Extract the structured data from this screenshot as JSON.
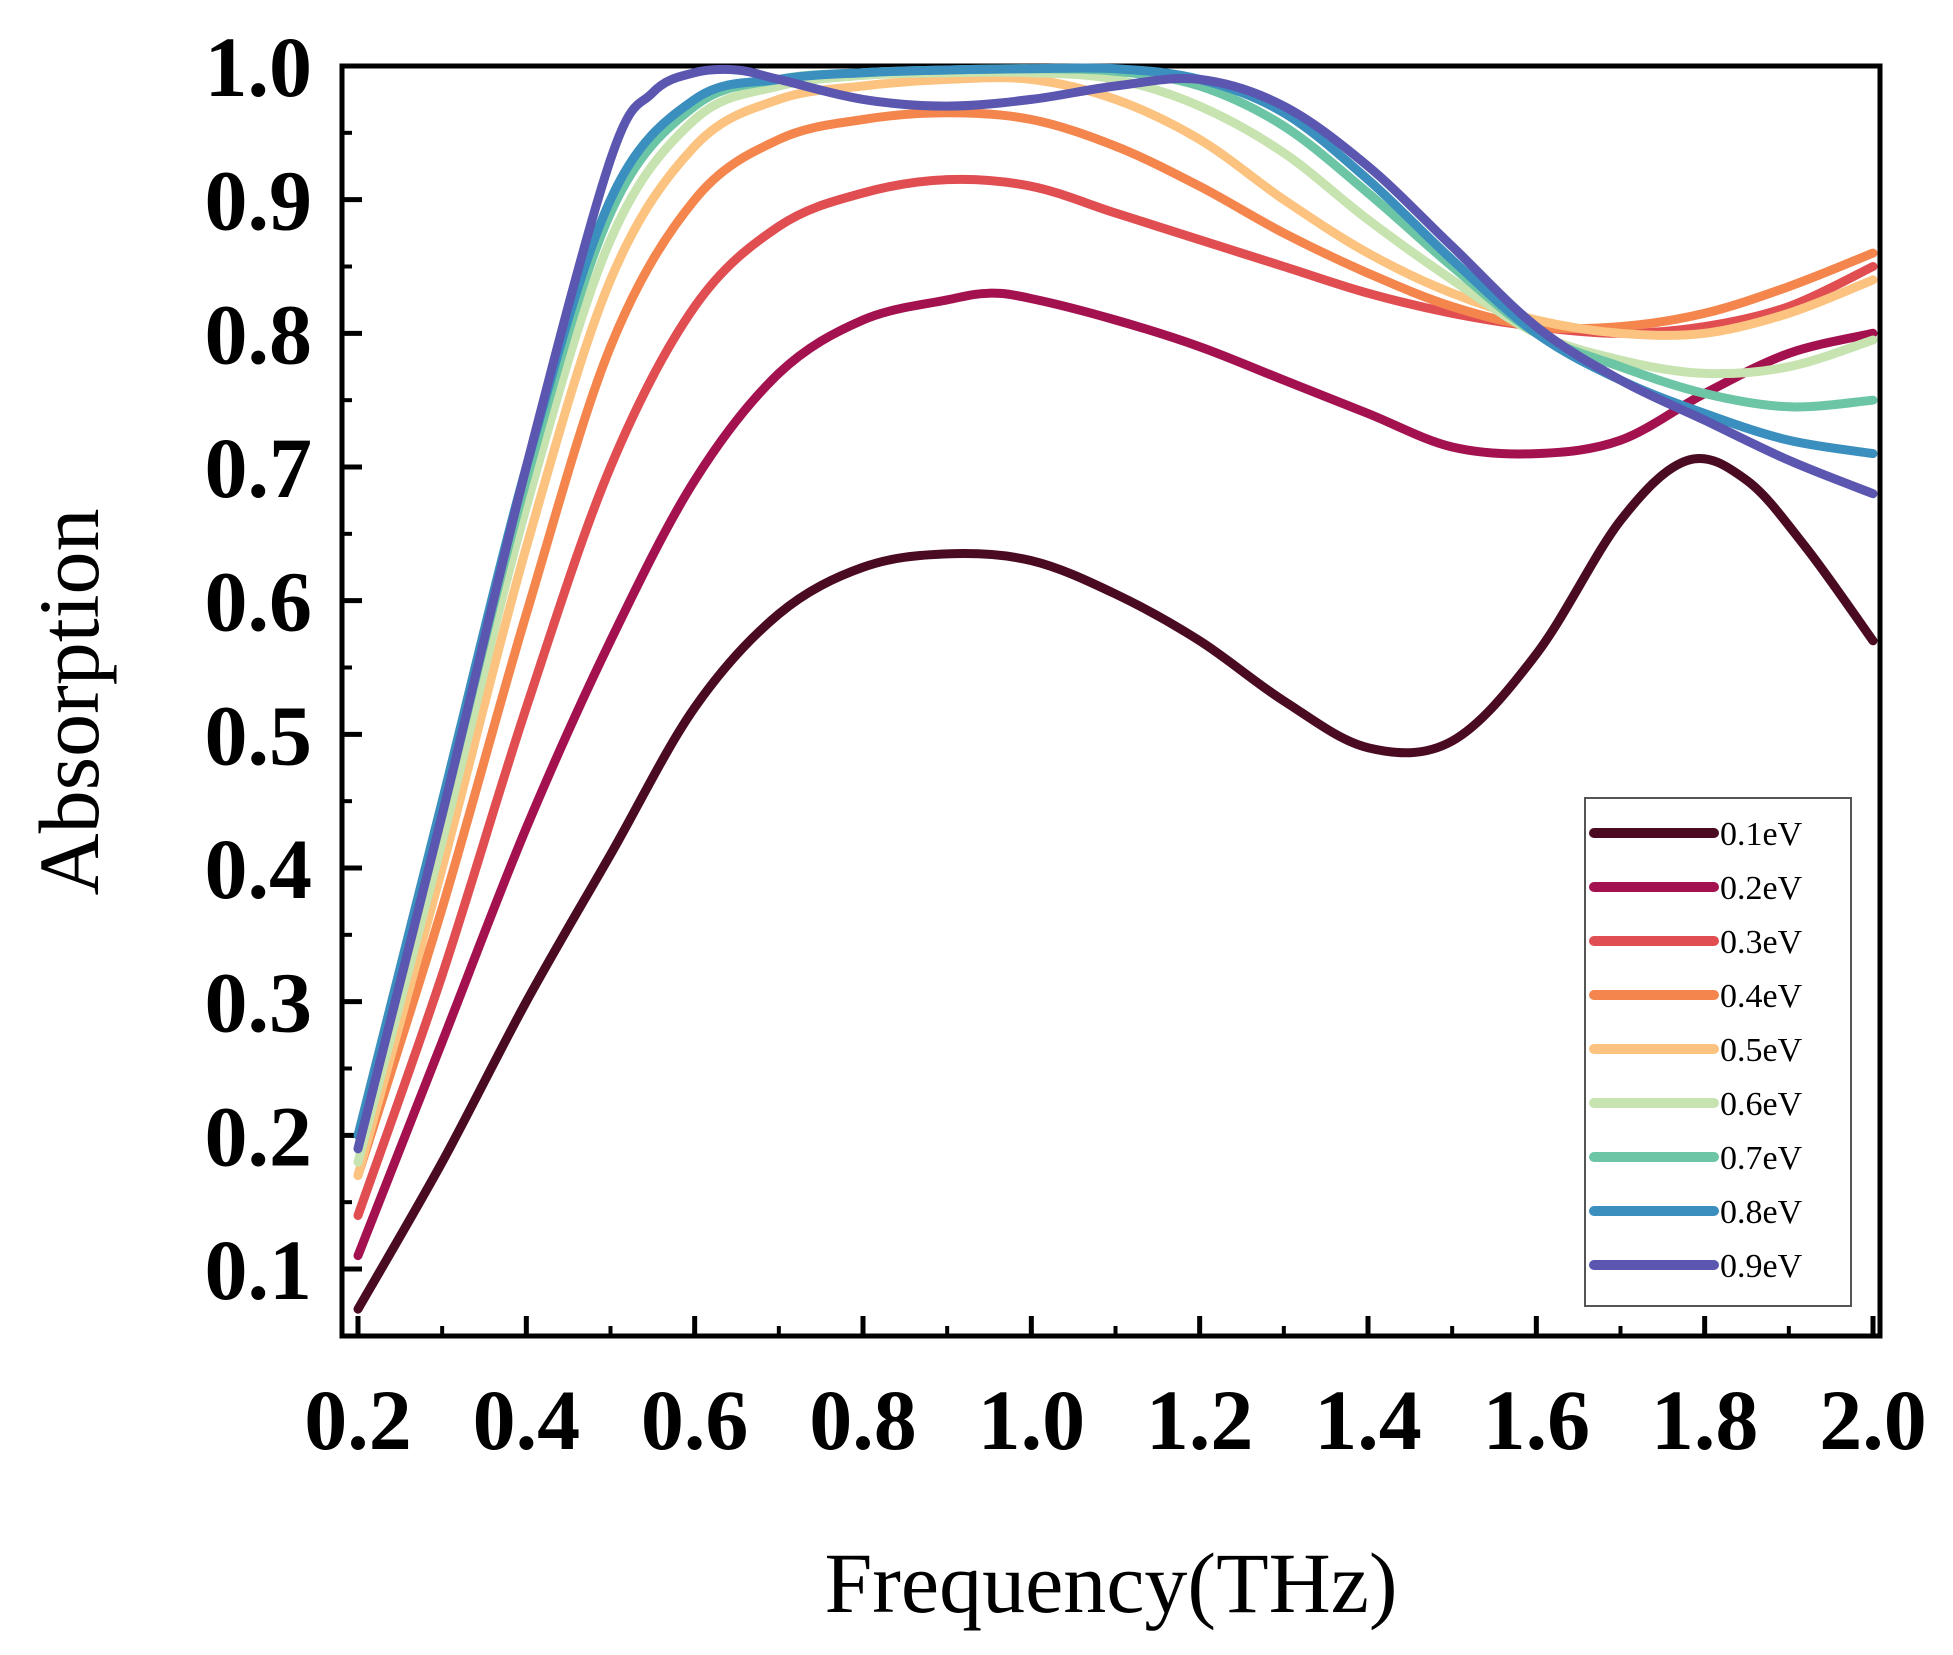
{
  "chart_data": {
    "type": "line",
    "title": "",
    "xlabel": "Frequency(THz)",
    "ylabel": "Absorption",
    "xlim": [
      0.2,
      2.0
    ],
    "ylim": [
      0.05,
      1.0
    ],
    "grid": false,
    "legend_position": "bottom-right",
    "x_ticks": [
      0.2,
      0.4,
      0.6,
      0.8,
      1.0,
      1.2,
      1.4,
      1.6,
      1.8,
      2.0
    ],
    "x_tick_labels": [
      "0.2",
      "0.4",
      "0.6",
      "0.8",
      "1.0",
      "1.2",
      "1.4",
      "1.6",
      "1.8",
      "2.0"
    ],
    "y_ticks": [
      0.1,
      0.2,
      0.3,
      0.4,
      0.5,
      0.6,
      0.7,
      0.8,
      0.9,
      1.0
    ],
    "y_tick_labels": [
      "0.1",
      "0.2",
      "0.3",
      "0.4",
      "0.5",
      "0.6",
      "0.7",
      "0.8",
      "0.9",
      "1.0"
    ],
    "series": [
      {
        "name": "0.1eV",
        "color": "#4a0b22",
        "points": [
          [
            0.2,
            0.07
          ],
          [
            0.3,
            0.18
          ],
          [
            0.4,
            0.3
          ],
          [
            0.5,
            0.41
          ],
          [
            0.6,
            0.52
          ],
          [
            0.7,
            0.59
          ],
          [
            0.8,
            0.625
          ],
          [
            0.9,
            0.635
          ],
          [
            1.0,
            0.63
          ],
          [
            1.1,
            0.605
          ],
          [
            1.2,
            0.57
          ],
          [
            1.3,
            0.525
          ],
          [
            1.4,
            0.49
          ],
          [
            1.5,
            0.495
          ],
          [
            1.6,
            0.56
          ],
          [
            1.7,
            0.66
          ],
          [
            1.78,
            0.705
          ],
          [
            1.85,
            0.69
          ],
          [
            1.92,
            0.64
          ],
          [
            2.0,
            0.57
          ]
        ]
      },
      {
        "name": "0.2eV",
        "color": "#a3124f",
        "points": [
          [
            0.2,
            0.11
          ],
          [
            0.3,
            0.27
          ],
          [
            0.4,
            0.43
          ],
          [
            0.5,
            0.57
          ],
          [
            0.6,
            0.69
          ],
          [
            0.7,
            0.77
          ],
          [
            0.8,
            0.81
          ],
          [
            0.9,
            0.825
          ],
          [
            0.95,
            0.83
          ],
          [
            1.0,
            0.826
          ],
          [
            1.1,
            0.81
          ],
          [
            1.2,
            0.79
          ],
          [
            1.3,
            0.765
          ],
          [
            1.4,
            0.74
          ],
          [
            1.5,
            0.715
          ],
          [
            1.6,
            0.71
          ],
          [
            1.7,
            0.72
          ],
          [
            1.8,
            0.755
          ],
          [
            1.9,
            0.785
          ],
          [
            2.0,
            0.8
          ]
        ]
      },
      {
        "name": "0.3eV",
        "color": "#e04e52",
        "points": [
          [
            0.2,
            0.14
          ],
          [
            0.3,
            0.32
          ],
          [
            0.4,
            0.52
          ],
          [
            0.5,
            0.7
          ],
          [
            0.6,
            0.82
          ],
          [
            0.7,
            0.88
          ],
          [
            0.8,
            0.905
          ],
          [
            0.9,
            0.915
          ],
          [
            1.0,
            0.91
          ],
          [
            1.1,
            0.89
          ],
          [
            1.2,
            0.87
          ],
          [
            1.3,
            0.85
          ],
          [
            1.4,
            0.83
          ],
          [
            1.5,
            0.815
          ],
          [
            1.6,
            0.805
          ],
          [
            1.7,
            0.8
          ],
          [
            1.8,
            0.805
          ],
          [
            1.9,
            0.82
          ],
          [
            2.0,
            0.85
          ]
        ]
      },
      {
        "name": "0.4eV",
        "color": "#f4854d",
        "points": [
          [
            0.2,
            0.17
          ],
          [
            0.3,
            0.37
          ],
          [
            0.4,
            0.59
          ],
          [
            0.5,
            0.79
          ],
          [
            0.6,
            0.9
          ],
          [
            0.7,
            0.945
          ],
          [
            0.8,
            0.96
          ],
          [
            0.9,
            0.965
          ],
          [
            1.0,
            0.96
          ],
          [
            1.1,
            0.94
          ],
          [
            1.2,
            0.91
          ],
          [
            1.3,
            0.875
          ],
          [
            1.4,
            0.845
          ],
          [
            1.5,
            0.82
          ],
          [
            1.6,
            0.805
          ],
          [
            1.7,
            0.805
          ],
          [
            1.8,
            0.815
          ],
          [
            1.9,
            0.835
          ],
          [
            2.0,
            0.86
          ]
        ]
      },
      {
        "name": "0.5eV",
        "color": "#fbc37f",
        "points": [
          [
            0.2,
            0.17
          ],
          [
            0.3,
            0.4
          ],
          [
            0.4,
            0.64
          ],
          [
            0.5,
            0.84
          ],
          [
            0.6,
            0.94
          ],
          [
            0.7,
            0.975
          ],
          [
            0.8,
            0.985
          ],
          [
            0.9,
            0.99
          ],
          [
            1.0,
            0.99
          ],
          [
            1.1,
            0.975
          ],
          [
            1.2,
            0.945
          ],
          [
            1.3,
            0.9
          ],
          [
            1.4,
            0.86
          ],
          [
            1.5,
            0.83
          ],
          [
            1.6,
            0.81
          ],
          [
            1.7,
            0.8
          ],
          [
            1.8,
            0.8
          ],
          [
            1.9,
            0.815
          ],
          [
            2.0,
            0.84
          ]
        ]
      },
      {
        "name": "0.6eV",
        "color": "#c7e3b0",
        "points": [
          [
            0.2,
            0.18
          ],
          [
            0.3,
            0.42
          ],
          [
            0.4,
            0.67
          ],
          [
            0.5,
            0.87
          ],
          [
            0.6,
            0.96
          ],
          [
            0.7,
            0.985
          ],
          [
            0.8,
            0.993
          ],
          [
            0.9,
            0.995
          ],
          [
            1.0,
            0.995
          ],
          [
            1.1,
            0.99
          ],
          [
            1.2,
            0.97
          ],
          [
            1.3,
            0.935
          ],
          [
            1.4,
            0.885
          ],
          [
            1.5,
            0.84
          ],
          [
            1.6,
            0.8
          ],
          [
            1.7,
            0.78
          ],
          [
            1.8,
            0.77
          ],
          [
            1.9,
            0.775
          ],
          [
            2.0,
            0.795
          ]
        ]
      },
      {
        "name": "0.7eV",
        "color": "#6cc5a5",
        "points": [
          [
            0.2,
            0.19
          ],
          [
            0.3,
            0.44
          ],
          [
            0.4,
            0.69
          ],
          [
            0.5,
            0.89
          ],
          [
            0.6,
            0.97
          ],
          [
            0.7,
            0.99
          ],
          [
            0.8,
            0.995
          ],
          [
            0.9,
            0.997
          ],
          [
            1.0,
            0.998
          ],
          [
            1.1,
            0.996
          ],
          [
            1.2,
            0.985
          ],
          [
            1.3,
            0.955
          ],
          [
            1.4,
            0.905
          ],
          [
            1.5,
            0.85
          ],
          [
            1.6,
            0.8
          ],
          [
            1.7,
            0.775
          ],
          [
            1.8,
            0.755
          ],
          [
            1.9,
            0.745
          ],
          [
            2.0,
            0.75
          ]
        ]
      },
      {
        "name": "0.8eV",
        "color": "#3a8fbf",
        "points": [
          [
            0.2,
            0.2
          ],
          [
            0.3,
            0.45
          ],
          [
            0.4,
            0.7
          ],
          [
            0.5,
            0.9
          ],
          [
            0.6,
            0.975
          ],
          [
            0.7,
            0.99
          ],
          [
            0.8,
            0.995
          ],
          [
            0.9,
            0.997
          ],
          [
            1.0,
            0.998
          ],
          [
            1.1,
            0.998
          ],
          [
            1.2,
            0.99
          ],
          [
            1.3,
            0.965
          ],
          [
            1.4,
            0.915
          ],
          [
            1.5,
            0.855
          ],
          [
            1.6,
            0.8
          ],
          [
            1.7,
            0.765
          ],
          [
            1.8,
            0.74
          ],
          [
            1.9,
            0.72
          ],
          [
            2.0,
            0.71
          ]
        ]
      },
      {
        "name": "0.9eV",
        "color": "#5b56b0",
        "points": [
          [
            0.2,
            0.19
          ],
          [
            0.3,
            0.44
          ],
          [
            0.4,
            0.7
          ],
          [
            0.5,
            0.93
          ],
          [
            0.55,
            0.98
          ],
          [
            0.6,
            0.995
          ],
          [
            0.65,
            0.997
          ],
          [
            0.7,
            0.99
          ],
          [
            0.8,
            0.975
          ],
          [
            0.9,
            0.97
          ],
          [
            1.0,
            0.975
          ],
          [
            1.1,
            0.985
          ],
          [
            1.2,
            0.99
          ],
          [
            1.3,
            0.97
          ],
          [
            1.4,
            0.925
          ],
          [
            1.5,
            0.865
          ],
          [
            1.6,
            0.805
          ],
          [
            1.7,
            0.765
          ],
          [
            1.8,
            0.735
          ],
          [
            1.9,
            0.705
          ],
          [
            2.0,
            0.68
          ]
        ]
      }
    ]
  }
}
